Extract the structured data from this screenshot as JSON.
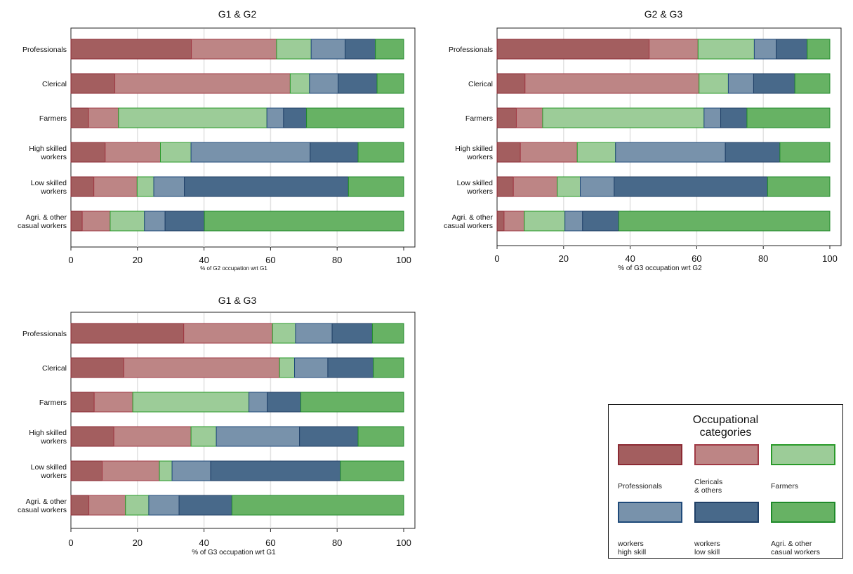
{
  "chart_data": [
    {
      "type": "bar",
      "orientation": "horizontal",
      "stacked": true,
      "title": "G1 & G2",
      "xlabel": "% of G2 occupation wrt G1",
      "xlim": [
        0,
        100
      ],
      "xticks": [
        "0",
        "20",
        "40",
        "60",
        "80",
        "100"
      ],
      "grid": true,
      "categories": [
        "Professionals",
        "Clerical",
        "Farmers",
        "High skilled\nworkers",
        "Low skilled\nworkers",
        "Agri. & other\ncasual workers"
      ],
      "series": [
        {
          "name": "Professionals",
          "values": [
            36.2,
            13.2,
            5.3,
            10.3,
            6.9,
            3.4
          ]
        },
        {
          "name": "Clericals & others",
          "values": [
            25.6,
            52.7,
            9.0,
            16.6,
            13.0,
            8.4
          ]
        },
        {
          "name": "Farmers",
          "values": [
            10.4,
            5.8,
            44.6,
            9.2,
            5.0,
            10.3
          ]
        },
        {
          "name": "workers high skill",
          "values": [
            10.2,
            8.6,
            5.0,
            35.8,
            9.2,
            6.2
          ]
        },
        {
          "name": "workers low skill",
          "values": [
            9.1,
            11.7,
            6.9,
            14.4,
            49.3,
            11.8
          ]
        },
        {
          "name": "Agri. & other casual workers",
          "values": [
            8.5,
            8.0,
            29.2,
            13.7,
            16.6,
            59.9
          ]
        }
      ]
    },
    {
      "type": "bar",
      "orientation": "horizontal",
      "stacked": true,
      "title": "G2 & G3",
      "xlabel": "% of G3 occupation wrt G2",
      "xlim": [
        0,
        100
      ],
      "xticks": [
        "0",
        "20",
        "40",
        "60",
        "80",
        "100"
      ],
      "grid": true,
      "categories": [
        "Professionals",
        "Clerical",
        "Farmers",
        "High skilled\nworkers",
        "Low skilled\nworkers",
        "Agri. & other\ncasual workers"
      ],
      "series": [
        {
          "name": "Professionals",
          "values": [
            45.7,
            8.4,
            5.8,
            7.0,
            4.9,
            2.1
          ]
        },
        {
          "name": "Clericals & others",
          "values": [
            14.7,
            52.3,
            7.9,
            17.1,
            13.2,
            6.1
          ]
        },
        {
          "name": "Farmers",
          "values": [
            16.9,
            8.8,
            48.5,
            11.5,
            6.9,
            12.2
          ]
        },
        {
          "name": "workers high skill",
          "values": [
            6.6,
            7.6,
            5.0,
            33.0,
            10.2,
            5.3
          ]
        },
        {
          "name": "workers low skill",
          "values": [
            9.3,
            12.4,
            7.9,
            16.4,
            46.1,
            10.9
          ]
        },
        {
          "name": "Agri. & other casual workers",
          "values": [
            6.8,
            10.5,
            24.9,
            15.0,
            18.7,
            63.4
          ]
        }
      ]
    },
    {
      "type": "bar",
      "orientation": "horizontal",
      "stacked": true,
      "title": "G1 & G3",
      "xlabel": "% of G3 occupation wrt G1",
      "xlim": [
        0,
        100
      ],
      "xticks": [
        "0",
        "20",
        "40",
        "60",
        "80",
        "100"
      ],
      "grid": true,
      "categories": [
        "Professionals",
        "Clerical",
        "Farmers",
        "High skilled\nworkers",
        "Low skilled\nworkers",
        "Agri. & other\ncasual workers"
      ],
      "series": [
        {
          "name": "Professionals",
          "values": [
            33.9,
            15.9,
            7.0,
            12.9,
            9.4,
            5.4
          ]
        },
        {
          "name": "Clericals & others",
          "values": [
            26.7,
            46.8,
            11.6,
            23.2,
            17.2,
            11.0
          ]
        },
        {
          "name": "Farmers",
          "values": [
            6.9,
            4.5,
            34.9,
            7.6,
            3.8,
            7.0
          ]
        },
        {
          "name": "workers high skill",
          "values": [
            11.0,
            10.0,
            5.5,
            25.0,
            11.6,
            9.1
          ]
        },
        {
          "name": "workers low skill",
          "values": [
            12.1,
            13.7,
            10.1,
            17.6,
            39.0,
            15.9
          ]
        },
        {
          "name": "Agri. & other casual workers",
          "values": [
            9.4,
            9.1,
            30.9,
            13.7,
            19.0,
            51.6
          ]
        }
      ]
    }
  ],
  "legend": {
    "title": "Occupational\ncategories",
    "placement": "bottom-right",
    "items": [
      {
        "label": "Professionals",
        "fill": "#a35e5f",
        "stroke": "#8b2a33"
      },
      {
        "label": "Clericals\n& others",
        "fill": "#bd8585",
        "stroke": "#a03a45"
      },
      {
        "label": "Farmers",
        "fill": "#9ccc98",
        "stroke": "#2a9a2a"
      },
      {
        "label": "workers\nhigh skill",
        "fill": "#7892ab",
        "stroke": "#1f4a7a"
      },
      {
        "label": "workers\nlow skill",
        "fill": "#48698a",
        "stroke": "#1f3f66"
      },
      {
        "label": "Agri. & other\ncasual workers",
        "fill": "#67b264",
        "stroke": "#1f8a2a"
      }
    ]
  }
}
